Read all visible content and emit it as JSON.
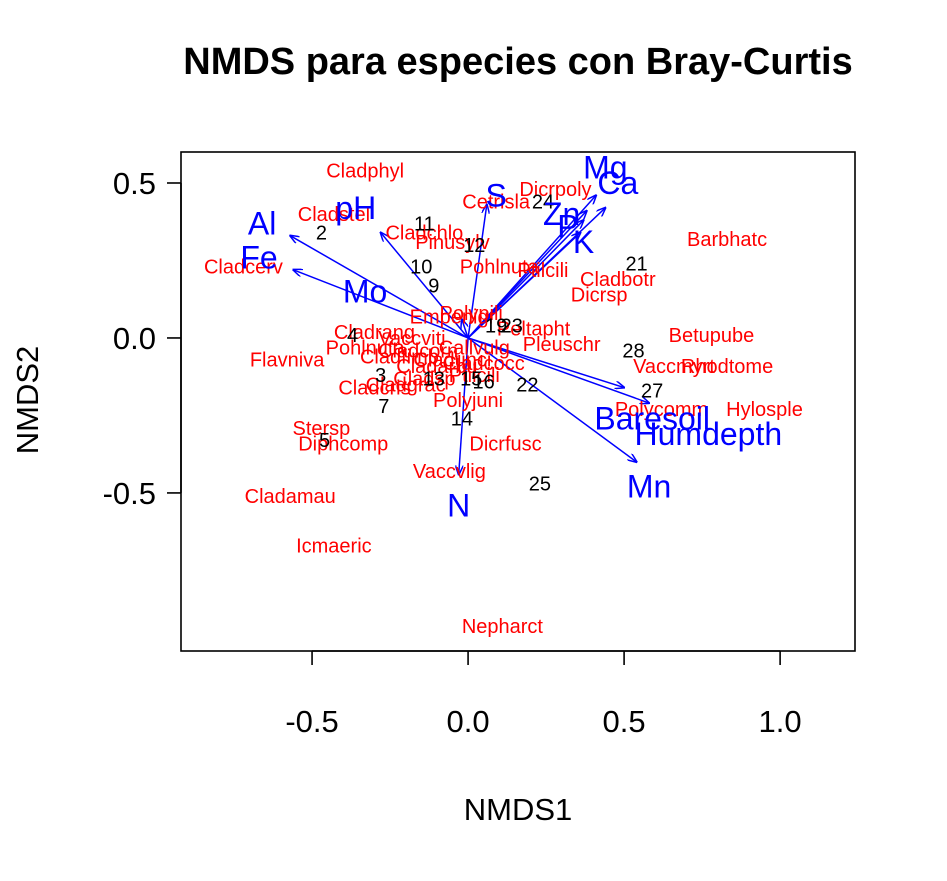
{
  "chart_data": {
    "type": "scatter",
    "title": "NMDS para especies con Bray-Curtis",
    "xlabel": "NMDS1",
    "ylabel": "NMDS2",
    "xlim": [
      -0.92,
      1.24
    ],
    "ylim": [
      -1.01,
      0.6
    ],
    "xticks": [
      -0.5,
      0.0,
      0.5,
      1.0
    ],
    "xtick_labels": [
      "-0.5",
      "0.0",
      "0.5",
      "1.0"
    ],
    "yticks": [
      -0.5,
      0.0,
      0.5
    ],
    "ytick_labels": [
      "-0.5",
      "0.0",
      "0.5"
    ],
    "grid": false,
    "colors": {
      "species": "#ff0000",
      "sites": "#000000",
      "vectors": "#0000ff"
    },
    "species": [
      {
        "label": "Cladphyl",
        "x": -0.33,
        "y": 0.54
      },
      {
        "label": "Cladstel",
        "x": -0.43,
        "y": 0.4
      },
      {
        "label": "Cetrisla",
        "x": 0.09,
        "y": 0.44
      },
      {
        "label": "Dicrpoly",
        "x": 0.28,
        "y": 0.48
      },
      {
        "label": "Cladchlo",
        "x": -0.14,
        "y": 0.34
      },
      {
        "label": "Pinusylv",
        "x": -0.05,
        "y": 0.31
      },
      {
        "label": "Pohlnuta",
        "x": 0.1,
        "y": 0.23
      },
      {
        "label": "Ptilcili",
        "x": 0.24,
        "y": 0.22
      },
      {
        "label": "Barbhatc",
        "x": 0.83,
        "y": 0.32
      },
      {
        "label": "Cladbotr",
        "x": 0.48,
        "y": 0.19
      },
      {
        "label": "Dicrsp",
        "x": 0.42,
        "y": 0.14
      },
      {
        "label": "Cladcerv",
        "x": -0.72,
        "y": 0.23
      },
      {
        "label": "Flavniva",
        "x": -0.58,
        "y": -0.07
      },
      {
        "label": "Betupube",
        "x": 0.78,
        "y": 0.01
      },
      {
        "label": "Vaccmyrt",
        "x": 0.66,
        "y": -0.09
      },
      {
        "label": "Rhodtome",
        "x": 0.83,
        "y": -0.09
      },
      {
        "label": "Hylosple",
        "x": 0.95,
        "y": -0.23
      },
      {
        "label": "Pleuschr",
        "x": 0.3,
        "y": -0.02
      },
      {
        "label": "Polypili",
        "x": 0.01,
        "y": 0.08
      },
      {
        "label": "Diphcomp",
        "x": -0.4,
        "y": -0.34
      },
      {
        "label": "Stersp",
        "x": -0.47,
        "y": -0.29
      },
      {
        "label": "Dicrfusc",
        "x": 0.12,
        "y": -0.34
      },
      {
        "label": "Vaccvlig",
        "x": -0.06,
        "y": -0.43
      },
      {
        "label": "Cladamau",
        "x": -0.57,
        "y": -0.51
      },
      {
        "label": "Icmaeric",
        "x": -0.43,
        "y": -0.67
      },
      {
        "label": "Nepharct",
        "x": 0.11,
        "y": -0.93
      },
      {
        "label": "Cladrang",
        "x": -0.3,
        "y": 0.02
      },
      {
        "label": "Pohlnuta",
        "x": -0.33,
        "y": -0.03
      },
      {
        "label": "Cladfimb",
        "x": -0.22,
        "y": -0.06
      },
      {
        "label": "Cladcorn",
        "x": -0.16,
        "y": -0.04
      },
      {
        "label": "Cladgrac",
        "x": -0.2,
        "y": -0.15
      },
      {
        "label": "Cladcris",
        "x": -0.3,
        "y": -0.16
      },
      {
        "label": "Cladsp",
        "x": -0.14,
        "y": -0.13
      },
      {
        "label": "Polyjuni",
        "x": 0.0,
        "y": -0.2
      },
      {
        "label": "Polycomm",
        "x": 0.62,
        "y": -0.23
      },
      {
        "label": "Empenigr",
        "x": -0.05,
        "y": 0.07
      },
      {
        "label": "Peltapht",
        "x": 0.21,
        "y": 0.03
      },
      {
        "label": "Callvulg",
        "x": 0.02,
        "y": -0.03
      },
      {
        "label": "Cladunci",
        "x": -0.05,
        "y": -0.07
      },
      {
        "label": "Cladarbu",
        "x": -0.1,
        "y": -0.09
      },
      {
        "label": "Cladcocc",
        "x": 0.05,
        "y": -0.08
      },
      {
        "label": "Vaccviti",
        "x": -0.18,
        "y": 0.0
      },
      {
        "label": "Ptilcili",
        "x": 0.02,
        "y": -0.12
      }
    ],
    "sites": [
      {
        "label": "2",
        "x": -0.47,
        "y": 0.34
      },
      {
        "label": "11",
        "x": -0.14,
        "y": 0.37
      },
      {
        "label": "12",
        "x": 0.02,
        "y": 0.3
      },
      {
        "label": "24",
        "x": 0.24,
        "y": 0.44
      },
      {
        "label": "10",
        "x": -0.15,
        "y": 0.23
      },
      {
        "label": "9",
        "x": -0.11,
        "y": 0.17
      },
      {
        "label": "21",
        "x": 0.54,
        "y": 0.24
      },
      {
        "label": "4",
        "x": -0.37,
        "y": 0.01
      },
      {
        "label": "23",
        "x": 0.14,
        "y": 0.04
      },
      {
        "label": "19",
        "x": 0.09,
        "y": 0.04
      },
      {
        "label": "28",
        "x": 0.53,
        "y": -0.04
      },
      {
        "label": "3",
        "x": -0.28,
        "y": -0.12
      },
      {
        "label": "13",
        "x": -0.11,
        "y": -0.13
      },
      {
        "label": "15",
        "x": 0.01,
        "y": -0.13
      },
      {
        "label": "16",
        "x": 0.05,
        "y": -0.14
      },
      {
        "label": "22",
        "x": 0.19,
        "y": -0.15
      },
      {
        "label": "27",
        "x": 0.59,
        "y": -0.17
      },
      {
        "label": "7",
        "x": -0.27,
        "y": -0.22
      },
      {
        "label": "14",
        "x": -0.02,
        "y": -0.26
      },
      {
        "label": "5",
        "x": -0.46,
        "y": -0.33
      },
      {
        "label": "25",
        "x": 0.23,
        "y": -0.47
      }
    ],
    "vectors": [
      {
        "label": "Mg",
        "x": 0.41,
        "y": 0.46,
        "lx": 0.44,
        "ly": 0.55
      },
      {
        "label": "Ca",
        "x": 0.44,
        "y": 0.42,
        "lx": 0.48,
        "ly": 0.5
      },
      {
        "label": "S",
        "x": 0.06,
        "y": 0.43,
        "lx": 0.09,
        "ly": 0.46
      },
      {
        "label": "Zn",
        "x": 0.38,
        "y": 0.41,
        "lx": 0.3,
        "ly": 0.4
      },
      {
        "label": "P",
        "x": 0.37,
        "y": 0.38,
        "lx": 0.32,
        "ly": 0.36
      },
      {
        "label": "K",
        "x": 0.36,
        "y": 0.34,
        "lx": 0.37,
        "ly": 0.31
      },
      {
        "label": "pH",
        "x": -0.28,
        "y": 0.34,
        "lx": -0.36,
        "ly": 0.42
      },
      {
        "label": "Al",
        "x": -0.57,
        "y": 0.33,
        "lx": -0.66,
        "ly": 0.37
      },
      {
        "label": "Fe",
        "x": -0.56,
        "y": 0.22,
        "lx": -0.67,
        "ly": 0.26
      },
      {
        "label": "Mo",
        "x": -0.02,
        "y": 0.06,
        "lx": -0.33,
        "ly": 0.15
      },
      {
        "label": "Baresoil",
        "x": 0.5,
        "y": -0.16,
        "lx": 0.59,
        "ly": -0.26
      },
      {
        "label": "Humdepth",
        "x": 0.58,
        "y": -0.21,
        "lx": 0.77,
        "ly": -0.31
      },
      {
        "label": "Mn",
        "x": 0.54,
        "y": -0.4,
        "lx": 0.58,
        "ly": -0.48
      },
      {
        "label": "N",
        "x": -0.03,
        "y": -0.44,
        "lx": -0.03,
        "ly": -0.54
      }
    ]
  }
}
